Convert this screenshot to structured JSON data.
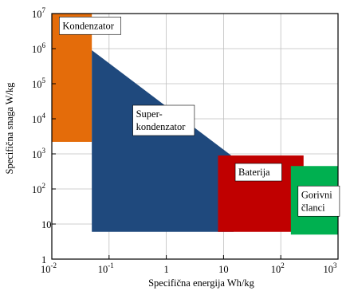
{
  "chart_data": {
    "type": "area",
    "title": "",
    "xlabel": "Specifična energija  Wh/kg",
    "ylabel": "Specifična snaga W/kg",
    "x_scale": "log",
    "y_scale": "log",
    "xlim": [
      0.01,
      1000
    ],
    "ylim": [
      1,
      10000000
    ],
    "grid": true,
    "x_ticks": [
      {
        "base": "10",
        "exp": "-2",
        "value": 0.01
      },
      {
        "base": "10",
        "exp": "-1",
        "value": 0.1
      },
      {
        "base": "1",
        "exp": "",
        "value": 1
      },
      {
        "base": "10",
        "exp": "",
        "value": 10
      },
      {
        "base": "10",
        "exp": "2",
        "value": 100
      },
      {
        "base": "10",
        "exp": "3",
        "value": 1000
      }
    ],
    "y_ticks": [
      {
        "base": "1",
        "exp": "",
        "value": 1
      },
      {
        "base": "10",
        "exp": "",
        "value": 10
      },
      {
        "base": "10",
        "exp": "2",
        "value": 100
      },
      {
        "base": "10",
        "exp": "3",
        "value": 1000
      },
      {
        "base": "10",
        "exp": "4",
        "value": 10000
      },
      {
        "base": "10",
        "exp": "5",
        "value": 100000
      },
      {
        "base": "10",
        "exp": "6",
        "value": 1000000
      },
      {
        "base": "10",
        "exp": "7",
        "value": 10000000
      }
    ],
    "regions": [
      {
        "name": "Kondenzator",
        "color": "#e46c0a",
        "shape": "rect",
        "x": [
          0.01,
          0.05
        ],
        "y": [
          2200,
          10000000
        ],
        "label_line1": "Kondenzator",
        "label_line2": "",
        "label_pos": [
          0.0135,
          4500000
        ]
      },
      {
        "name": "Super-kondenzator",
        "color": "#1f497d",
        "shape": "polygon",
        "points": [
          [
            0.05,
            900000
          ],
          [
            0.05,
            6
          ],
          [
            15,
            6
          ],
          [
            15,
            800
          ]
        ],
        "label_line1": "Super-",
        "label_line2": "kondenzator",
        "label_pos": [
          0.26,
          9000
        ]
      },
      {
        "name": "Baterija",
        "color": "#c00000",
        "shape": "rect",
        "x": [
          8,
          250
        ],
        "y": [
          6,
          900
        ],
        "label_line1": "Baterija",
        "label_line2": "",
        "label_pos": [
          16,
          300
        ]
      },
      {
        "name": "Gorivni članci",
        "color": "#00b050",
        "shape": "rect",
        "x": [
          150,
          1000
        ],
        "y": [
          5,
          450
        ],
        "label_line1": "Gorivni",
        "label_line2": "članci",
        "label_pos": [
          200,
          45
        ]
      }
    ]
  }
}
